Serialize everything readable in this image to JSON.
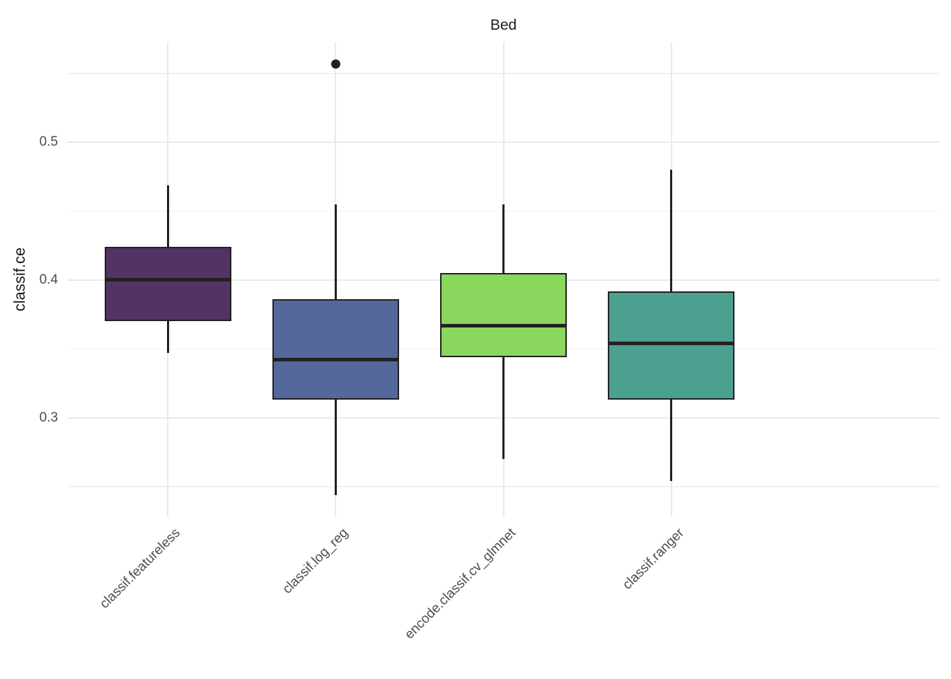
{
  "chart_data": {
    "type": "boxplot",
    "title": "Bed",
    "xlabel": "",
    "ylabel": "classif.ce",
    "ylim": [
      0.228,
      0.5725
    ],
    "y_major_ticks": [
      0.3,
      0.4,
      0.5
    ],
    "y_minor_ticks": [
      0.25,
      0.35,
      0.45,
      0.55
    ],
    "grid": "on",
    "legend": "none",
    "categories": [
      "classif.featureless",
      "classif.log_reg",
      "encode.classif.cv_glmnet",
      "classif.ranger"
    ],
    "boxes": [
      {
        "label": "classif.featureless",
        "fill": "#533266",
        "whisker_low": 0.347,
        "q1": 0.37,
        "median": 0.4,
        "q3": 0.424,
        "whisker_high": 0.469,
        "outliers": []
      },
      {
        "label": "classif.log_reg",
        "fill": "#55689B",
        "whisker_low": 0.244,
        "q1": 0.313,
        "median": 0.342,
        "q3": 0.386,
        "whisker_high": 0.455,
        "outliers": [
          0.557
        ]
      },
      {
        "label": "encode.classif.cv_glmnet",
        "fill": "#8BD65C",
        "whisker_low": 0.27,
        "q1": 0.344,
        "median": 0.367,
        "q3": 0.405,
        "whisker_high": 0.455,
        "outliers": []
      },
      {
        "label": "classif.ranger",
        "fill": "#4BA08F",
        "whisker_low": 0.254,
        "q1": 0.313,
        "median": 0.354,
        "q3": 0.392,
        "whisker_high": 0.48,
        "outliers": []
      }
    ],
    "colors": {
      "stroke": "#212121",
      "grid_major": "#e9e9e9",
      "grid_minor": "#f1f1f1",
      "tick_label": "#4d4d4d",
      "title": "#1a1a1a",
      "background": "#ffffff"
    }
  }
}
